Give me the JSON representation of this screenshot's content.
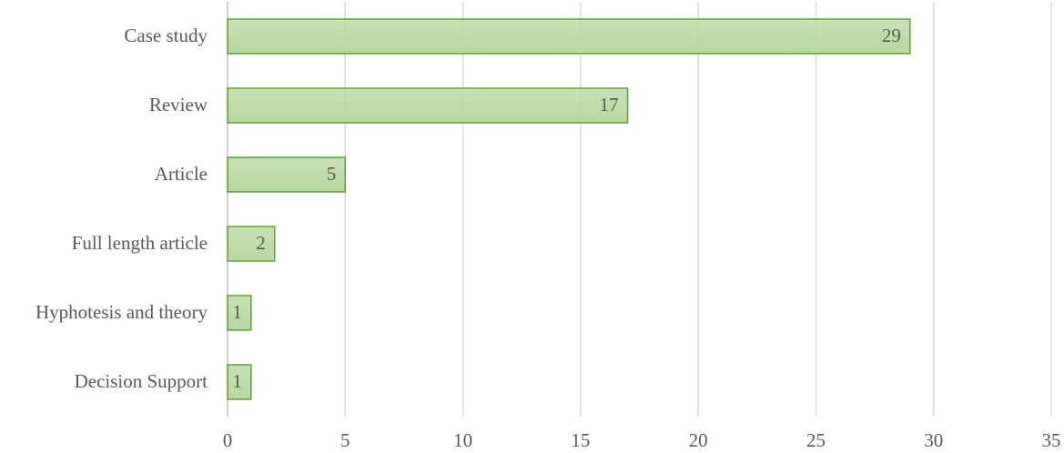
{
  "chart_data": {
    "type": "bar",
    "orientation": "horizontal",
    "categories": [
      "Case study",
      "Review",
      "Article",
      "Full length article",
      "Hyphotesis and theory",
      "Decision Support"
    ],
    "values": [
      29,
      17,
      5,
      2,
      1,
      1
    ],
    "color": "#b5d89f",
    "edge_color": "#5fa32f",
    "xlim": [
      0,
      35
    ],
    "xticks": [
      0,
      5,
      10,
      15,
      20,
      25,
      30,
      35
    ],
    "grid": true
  }
}
